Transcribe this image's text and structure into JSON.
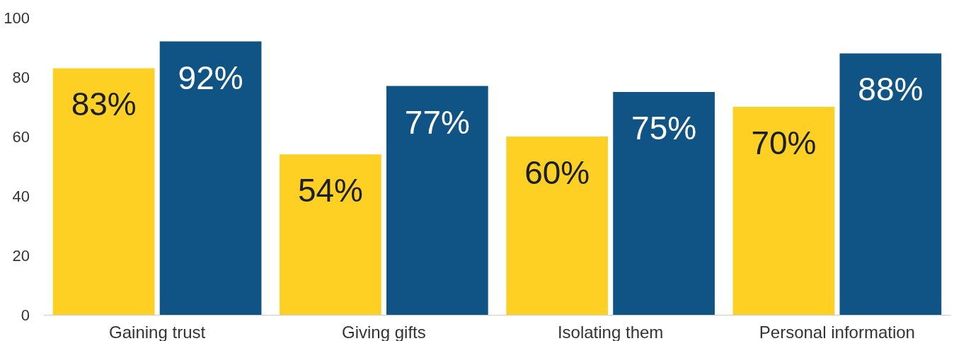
{
  "chart_data": {
    "type": "bar",
    "categories": [
      "Gaining trust",
      "Giving gifts",
      "Isolating them",
      "Personal information"
    ],
    "series": [
      {
        "color": "#fdd023",
        "values": [
          83,
          54,
          60,
          70
        ],
        "value_labels": [
          "83%",
          "54%",
          "60%",
          "70%"
        ]
      },
      {
        "color": "#105385",
        "values": [
          92,
          77,
          75,
          88
        ],
        "value_labels": [
          "92%",
          "77%",
          "75%",
          "88%"
        ]
      }
    ],
    "ylim": [
      0,
      100
    ],
    "yticks": [
      0,
      20,
      40,
      60,
      80,
      100
    ],
    "grid": false
  }
}
